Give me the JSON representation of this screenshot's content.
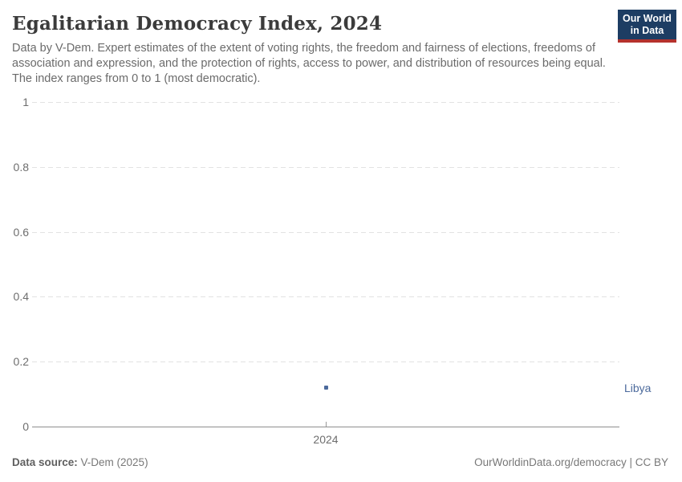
{
  "header": {
    "title": "Egalitarian Democracy Index, 2024",
    "subtitle": "Data by V-Dem. Expert estimates of the extent of voting rights, the freedom and fairness of elections, freedoms of association and expression, and the protection of rights, access to power, and distribution of resources being equal. The index ranges from 0 to 1 (most democratic)."
  },
  "logo": {
    "line1": "Our World",
    "line2": "in Data",
    "bg_color": "#1d3d63",
    "bar_color": "#b5322d"
  },
  "chart_data": {
    "type": "scatter",
    "title": "Egalitarian Democracy Index, 2024",
    "x": [
      2024
    ],
    "series": [
      {
        "name": "Libya",
        "values": [
          0.12
        ],
        "color": "#4c6a9c"
      }
    ],
    "xlabel": "",
    "ylabel": "",
    "ylim": [
      0,
      1
    ],
    "yticks": [
      0,
      0.2,
      0.4,
      0.6,
      0.8,
      1
    ],
    "ytick_labels": [
      "0",
      "0.2",
      "0.4",
      "0.6",
      "0.8",
      "1"
    ],
    "xtick_labels": [
      "2024"
    ],
    "grid": "horizontal-dashed",
    "legend_position": "none",
    "entity_label": "Libya"
  },
  "footer": {
    "source_label": "Data source:",
    "source_value": " V-Dem (2025)",
    "credit": "OurWorldinData.org/democracy | CC BY"
  },
  "colors": {
    "accent_blue": "#4c6a9c",
    "gridline": "#e2e2e2",
    "axis": "#8f8f8f",
    "text_gray": "#6b6b6b",
    "logo_navy": "#1d3d63",
    "logo_red": "#b5322d"
  }
}
